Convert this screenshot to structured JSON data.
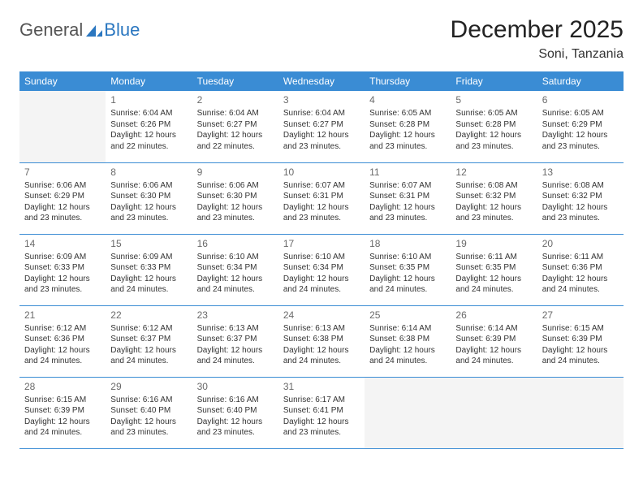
{
  "logo": {
    "text_general": "General",
    "text_blue": "Blue",
    "icon_color": "#2b77c0"
  },
  "header": {
    "month_title": "December 2025",
    "location": "Soni, Tanzania"
  },
  "colors": {
    "header_bg": "#3a8cd4",
    "header_text": "#ffffff",
    "border": "#3a8cd4",
    "empty_bg": "#f4f4f4",
    "day_number": "#6a6a6a",
    "body_text": "#333333"
  },
  "weekdays": [
    "Sunday",
    "Monday",
    "Tuesday",
    "Wednesday",
    "Thursday",
    "Friday",
    "Saturday"
  ],
  "weeks": [
    [
      {
        "empty": true
      },
      {
        "day": "1",
        "sunrise": "Sunrise: 6:04 AM",
        "sunset": "Sunset: 6:26 PM",
        "daylight": "Daylight: 12 hours and 22 minutes."
      },
      {
        "day": "2",
        "sunrise": "Sunrise: 6:04 AM",
        "sunset": "Sunset: 6:27 PM",
        "daylight": "Daylight: 12 hours and 22 minutes."
      },
      {
        "day": "3",
        "sunrise": "Sunrise: 6:04 AM",
        "sunset": "Sunset: 6:27 PM",
        "daylight": "Daylight: 12 hours and 23 minutes."
      },
      {
        "day": "4",
        "sunrise": "Sunrise: 6:05 AM",
        "sunset": "Sunset: 6:28 PM",
        "daylight": "Daylight: 12 hours and 23 minutes."
      },
      {
        "day": "5",
        "sunrise": "Sunrise: 6:05 AM",
        "sunset": "Sunset: 6:28 PM",
        "daylight": "Daylight: 12 hours and 23 minutes."
      },
      {
        "day": "6",
        "sunrise": "Sunrise: 6:05 AM",
        "sunset": "Sunset: 6:29 PM",
        "daylight": "Daylight: 12 hours and 23 minutes."
      }
    ],
    [
      {
        "day": "7",
        "sunrise": "Sunrise: 6:06 AM",
        "sunset": "Sunset: 6:29 PM",
        "daylight": "Daylight: 12 hours and 23 minutes."
      },
      {
        "day": "8",
        "sunrise": "Sunrise: 6:06 AM",
        "sunset": "Sunset: 6:30 PM",
        "daylight": "Daylight: 12 hours and 23 minutes."
      },
      {
        "day": "9",
        "sunrise": "Sunrise: 6:06 AM",
        "sunset": "Sunset: 6:30 PM",
        "daylight": "Daylight: 12 hours and 23 minutes."
      },
      {
        "day": "10",
        "sunrise": "Sunrise: 6:07 AM",
        "sunset": "Sunset: 6:31 PM",
        "daylight": "Daylight: 12 hours and 23 minutes."
      },
      {
        "day": "11",
        "sunrise": "Sunrise: 6:07 AM",
        "sunset": "Sunset: 6:31 PM",
        "daylight": "Daylight: 12 hours and 23 minutes."
      },
      {
        "day": "12",
        "sunrise": "Sunrise: 6:08 AM",
        "sunset": "Sunset: 6:32 PM",
        "daylight": "Daylight: 12 hours and 23 minutes."
      },
      {
        "day": "13",
        "sunrise": "Sunrise: 6:08 AM",
        "sunset": "Sunset: 6:32 PM",
        "daylight": "Daylight: 12 hours and 23 minutes."
      }
    ],
    [
      {
        "day": "14",
        "sunrise": "Sunrise: 6:09 AM",
        "sunset": "Sunset: 6:33 PM",
        "daylight": "Daylight: 12 hours and 23 minutes."
      },
      {
        "day": "15",
        "sunrise": "Sunrise: 6:09 AM",
        "sunset": "Sunset: 6:33 PM",
        "daylight": "Daylight: 12 hours and 24 minutes."
      },
      {
        "day": "16",
        "sunrise": "Sunrise: 6:10 AM",
        "sunset": "Sunset: 6:34 PM",
        "daylight": "Daylight: 12 hours and 24 minutes."
      },
      {
        "day": "17",
        "sunrise": "Sunrise: 6:10 AM",
        "sunset": "Sunset: 6:34 PM",
        "daylight": "Daylight: 12 hours and 24 minutes."
      },
      {
        "day": "18",
        "sunrise": "Sunrise: 6:10 AM",
        "sunset": "Sunset: 6:35 PM",
        "daylight": "Daylight: 12 hours and 24 minutes."
      },
      {
        "day": "19",
        "sunrise": "Sunrise: 6:11 AM",
        "sunset": "Sunset: 6:35 PM",
        "daylight": "Daylight: 12 hours and 24 minutes."
      },
      {
        "day": "20",
        "sunrise": "Sunrise: 6:11 AM",
        "sunset": "Sunset: 6:36 PM",
        "daylight": "Daylight: 12 hours and 24 minutes."
      }
    ],
    [
      {
        "day": "21",
        "sunrise": "Sunrise: 6:12 AM",
        "sunset": "Sunset: 6:36 PM",
        "daylight": "Daylight: 12 hours and 24 minutes."
      },
      {
        "day": "22",
        "sunrise": "Sunrise: 6:12 AM",
        "sunset": "Sunset: 6:37 PM",
        "daylight": "Daylight: 12 hours and 24 minutes."
      },
      {
        "day": "23",
        "sunrise": "Sunrise: 6:13 AM",
        "sunset": "Sunset: 6:37 PM",
        "daylight": "Daylight: 12 hours and 24 minutes."
      },
      {
        "day": "24",
        "sunrise": "Sunrise: 6:13 AM",
        "sunset": "Sunset: 6:38 PM",
        "daylight": "Daylight: 12 hours and 24 minutes."
      },
      {
        "day": "25",
        "sunrise": "Sunrise: 6:14 AM",
        "sunset": "Sunset: 6:38 PM",
        "daylight": "Daylight: 12 hours and 24 minutes."
      },
      {
        "day": "26",
        "sunrise": "Sunrise: 6:14 AM",
        "sunset": "Sunset: 6:39 PM",
        "daylight": "Daylight: 12 hours and 24 minutes."
      },
      {
        "day": "27",
        "sunrise": "Sunrise: 6:15 AM",
        "sunset": "Sunset: 6:39 PM",
        "daylight": "Daylight: 12 hours and 24 minutes."
      }
    ],
    [
      {
        "day": "28",
        "sunrise": "Sunrise: 6:15 AM",
        "sunset": "Sunset: 6:39 PM",
        "daylight": "Daylight: 12 hours and 24 minutes."
      },
      {
        "day": "29",
        "sunrise": "Sunrise: 6:16 AM",
        "sunset": "Sunset: 6:40 PM",
        "daylight": "Daylight: 12 hours and 23 minutes."
      },
      {
        "day": "30",
        "sunrise": "Sunrise: 6:16 AM",
        "sunset": "Sunset: 6:40 PM",
        "daylight": "Daylight: 12 hours and 23 minutes."
      },
      {
        "day": "31",
        "sunrise": "Sunrise: 6:17 AM",
        "sunset": "Sunset: 6:41 PM",
        "daylight": "Daylight: 12 hours and 23 minutes."
      },
      {
        "empty": true
      },
      {
        "empty": true
      },
      {
        "empty": true
      }
    ]
  ]
}
